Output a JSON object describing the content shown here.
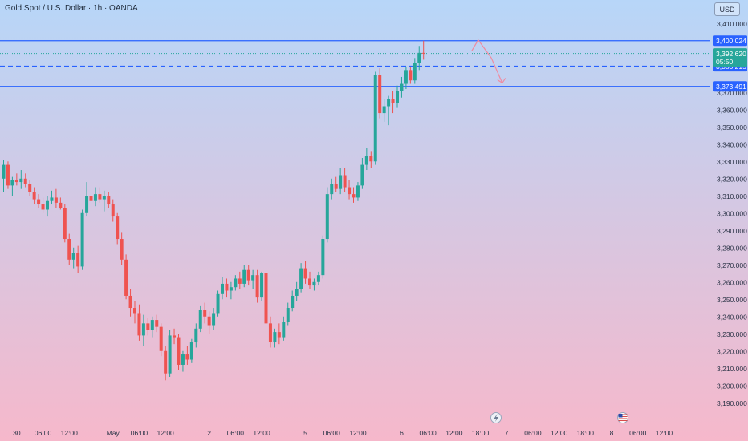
{
  "header": {
    "title": "Gold Spot / U.S. Dollar · 1h · OANDA",
    "currency": "USD"
  },
  "colors": {
    "up": "#26a69a",
    "down": "#ef5350",
    "level_line": "#2962ff",
    "bg_top": "#b7d6f8",
    "bg_bottom": "#f6b8cb",
    "projection": "#f08aa0"
  },
  "chart_data": {
    "type": "candlestick",
    "symbol": "XAUUSD",
    "interval": "1h",
    "ylim": [
      3185,
      3412
    ],
    "y_ticks": [
      "3,190.000",
      "3,200.000",
      "3,210.000",
      "3,220.000",
      "3,230.000",
      "3,240.000",
      "3,250.000",
      "3,260.000",
      "3,270.000",
      "3,280.000",
      "3,290.000",
      "3,300.000",
      "3,310.000",
      "3,320.000",
      "3,330.000",
      "3,340.000",
      "3,350.000",
      "3,360.000",
      "3,370.000",
      "3,410.000"
    ],
    "x_ticks": [
      {
        "label": "30",
        "bar": 3
      },
      {
        "label": "06:00",
        "bar": 9
      },
      {
        "label": "12:00",
        "bar": 15
      },
      {
        "label": "May",
        "bar": 25
      },
      {
        "label": "06:00",
        "bar": 31
      },
      {
        "label": "12:00",
        "bar": 37
      },
      {
        "label": "2",
        "bar": 47
      },
      {
        "label": "06:00",
        "bar": 53
      },
      {
        "label": "12:00",
        "bar": 59
      },
      {
        "label": "5",
        "bar": 69
      },
      {
        "label": "06:00",
        "bar": 75
      },
      {
        "label": "12:00",
        "bar": 81
      },
      {
        "label": "6",
        "bar": 91
      },
      {
        "label": "06:00",
        "bar": 97
      },
      {
        "label": "12:00",
        "bar": 103
      },
      {
        "label": "18:00",
        "bar": 109
      },
      {
        "label": "7",
        "bar": 115
      },
      {
        "label": "06:00",
        "bar": 121
      },
      {
        "label": "12:00",
        "bar": 127
      },
      {
        "label": "18:00",
        "bar": 133
      },
      {
        "label": "8",
        "bar": 139
      },
      {
        "label": "06:00",
        "bar": 145
      },
      {
        "label": "12:00",
        "bar": 151
      }
    ],
    "levels": [
      {
        "value": 3400.024,
        "label": "3,400.024",
        "style": "solid"
      },
      {
        "value": 3385.215,
        "label": "3,385.215",
        "style": "dashed"
      },
      {
        "value": 3373.491,
        "label": "3,373.491",
        "style": "solid"
      }
    ],
    "current_price": {
      "value": 3392.62,
      "label": "3,392.620",
      "countdown": "05:50"
    },
    "projection": [
      {
        "bar": 108.5,
        "y": 3400.5
      },
      {
        "bar": 111.5,
        "y": 3390
      },
      {
        "bar": 114,
        "y": 3375.5
      }
    ],
    "candles": [
      {
        "o": 3320,
        "h": 3331,
        "l": 3312,
        "c": 3328
      },
      {
        "o": 3328,
        "h": 3330,
        "l": 3314,
        "c": 3316
      },
      {
        "o": 3316,
        "h": 3321,
        "l": 3310,
        "c": 3319
      },
      {
        "o": 3319,
        "h": 3323,
        "l": 3316,
        "c": 3318
      },
      {
        "o": 3318,
        "h": 3325,
        "l": 3314,
        "c": 3320
      },
      {
        "o": 3320,
        "h": 3323,
        "l": 3315,
        "c": 3317
      },
      {
        "o": 3317,
        "h": 3319,
        "l": 3310,
        "c": 3312
      },
      {
        "o": 3312,
        "h": 3315,
        "l": 3305,
        "c": 3308
      },
      {
        "o": 3308,
        "h": 3311,
        "l": 3303,
        "c": 3305
      },
      {
        "o": 3305,
        "h": 3309,
        "l": 3300,
        "c": 3302
      },
      {
        "o": 3302,
        "h": 3310,
        "l": 3298,
        "c": 3307
      },
      {
        "o": 3307,
        "h": 3313,
        "l": 3305,
        "c": 3309
      },
      {
        "o": 3309,
        "h": 3314,
        "l": 3303,
        "c": 3306
      },
      {
        "o": 3306,
        "h": 3309,
        "l": 3302,
        "c": 3303
      },
      {
        "o": 3303,
        "h": 3305,
        "l": 3283,
        "c": 3285
      },
      {
        "o": 3285,
        "h": 3288,
        "l": 3270,
        "c": 3273
      },
      {
        "o": 3273,
        "h": 3280,
        "l": 3268,
        "c": 3277
      },
      {
        "o": 3277,
        "h": 3281,
        "l": 3265,
        "c": 3269
      },
      {
        "o": 3269,
        "h": 3302,
        "l": 3267,
        "c": 3300
      },
      {
        "o": 3300,
        "h": 3318,
        "l": 3298,
        "c": 3310
      },
      {
        "o": 3310,
        "h": 3313,
        "l": 3303,
        "c": 3307
      },
      {
        "o": 3307,
        "h": 3315,
        "l": 3304,
        "c": 3311
      },
      {
        "o": 3311,
        "h": 3315,
        "l": 3306,
        "c": 3308
      },
      {
        "o": 3308,
        "h": 3313,
        "l": 3301,
        "c": 3310
      },
      {
        "o": 3310,
        "h": 3312,
        "l": 3303,
        "c": 3305
      },
      {
        "o": 3305,
        "h": 3308,
        "l": 3295,
        "c": 3298
      },
      {
        "o": 3298,
        "h": 3300,
        "l": 3282,
        "c": 3285
      },
      {
        "o": 3285,
        "h": 3289,
        "l": 3270,
        "c": 3273
      },
      {
        "o": 3273,
        "h": 3276,
        "l": 3250,
        "c": 3252
      },
      {
        "o": 3252,
        "h": 3256,
        "l": 3240,
        "c": 3245
      },
      {
        "o": 3245,
        "h": 3249,
        "l": 3236,
        "c": 3242
      },
      {
        "o": 3242,
        "h": 3247,
        "l": 3226,
        "c": 3229
      },
      {
        "o": 3229,
        "h": 3241,
        "l": 3223,
        "c": 3236
      },
      {
        "o": 3236,
        "h": 3239,
        "l": 3229,
        "c": 3232
      },
      {
        "o": 3232,
        "h": 3240,
        "l": 3228,
        "c": 3238
      },
      {
        "o": 3238,
        "h": 3241,
        "l": 3231,
        "c": 3234
      },
      {
        "o": 3234,
        "h": 3236,
        "l": 3217,
        "c": 3220
      },
      {
        "o": 3220,
        "h": 3223,
        "l": 3203,
        "c": 3207
      },
      {
        "o": 3207,
        "h": 3232,
        "l": 3205,
        "c": 3229
      },
      {
        "o": 3229,
        "h": 3233,
        "l": 3224,
        "c": 3228
      },
      {
        "o": 3228,
        "h": 3230,
        "l": 3209,
        "c": 3212
      },
      {
        "o": 3212,
        "h": 3220,
        "l": 3208,
        "c": 3218
      },
      {
        "o": 3218,
        "h": 3223,
        "l": 3212,
        "c": 3215
      },
      {
        "o": 3215,
        "h": 3227,
        "l": 3213,
        "c": 3225
      },
      {
        "o": 3225,
        "h": 3236,
        "l": 3222,
        "c": 3233
      },
      {
        "o": 3233,
        "h": 3246,
        "l": 3231,
        "c": 3244
      },
      {
        "o": 3244,
        "h": 3248,
        "l": 3236,
        "c": 3240
      },
      {
        "o": 3240,
        "h": 3243,
        "l": 3230,
        "c": 3235
      },
      {
        "o": 3235,
        "h": 3245,
        "l": 3232,
        "c": 3242
      },
      {
        "o": 3242,
        "h": 3255,
        "l": 3240,
        "c": 3253
      },
      {
        "o": 3253,
        "h": 3263,
        "l": 3250,
        "c": 3259
      },
      {
        "o": 3259,
        "h": 3262,
        "l": 3251,
        "c": 3255
      },
      {
        "o": 3255,
        "h": 3260,
        "l": 3250,
        "c": 3257
      },
      {
        "o": 3257,
        "h": 3264,
        "l": 3255,
        "c": 3262
      },
      {
        "o": 3262,
        "h": 3266,
        "l": 3256,
        "c": 3259
      },
      {
        "o": 3259,
        "h": 3270,
        "l": 3257,
        "c": 3267
      },
      {
        "o": 3267,
        "h": 3270,
        "l": 3258,
        "c": 3261
      },
      {
        "o": 3261,
        "h": 3267,
        "l": 3256,
        "c": 3264
      },
      {
        "o": 3264,
        "h": 3267,
        "l": 3248,
        "c": 3251
      },
      {
        "o": 3251,
        "h": 3266,
        "l": 3249,
        "c": 3265
      },
      {
        "o": 3265,
        "h": 3268,
        "l": 3233,
        "c": 3236
      },
      {
        "o": 3236,
        "h": 3240,
        "l": 3222,
        "c": 3225
      },
      {
        "o": 3225,
        "h": 3233,
        "l": 3222,
        "c": 3231
      },
      {
        "o": 3231,
        "h": 3236,
        "l": 3224,
        "c": 3228
      },
      {
        "o": 3228,
        "h": 3240,
        "l": 3226,
        "c": 3237
      },
      {
        "o": 3237,
        "h": 3248,
        "l": 3235,
        "c": 3245
      },
      {
        "o": 3245,
        "h": 3255,
        "l": 3243,
        "c": 3252
      },
      {
        "o": 3252,
        "h": 3260,
        "l": 3249,
        "c": 3256
      },
      {
        "o": 3256,
        "h": 3271,
        "l": 3254,
        "c": 3268
      },
      {
        "o": 3268,
        "h": 3272,
        "l": 3259,
        "c": 3262
      },
      {
        "o": 3262,
        "h": 3266,
        "l": 3256,
        "c": 3258
      },
      {
        "o": 3258,
        "h": 3262,
        "l": 3255,
        "c": 3260
      },
      {
        "o": 3260,
        "h": 3266,
        "l": 3258,
        "c": 3264
      },
      {
        "o": 3264,
        "h": 3287,
        "l": 3262,
        "c": 3285
      },
      {
        "o": 3285,
        "h": 3315,
        "l": 3283,
        "c": 3311
      },
      {
        "o": 3311,
        "h": 3320,
        "l": 3308,
        "c": 3317
      },
      {
        "o": 3317,
        "h": 3321,
        "l": 3312,
        "c": 3314
      },
      {
        "o": 3314,
        "h": 3326,
        "l": 3311,
        "c": 3322
      },
      {
        "o": 3322,
        "h": 3326,
        "l": 3312,
        "c": 3315
      },
      {
        "o": 3315,
        "h": 3319,
        "l": 3308,
        "c": 3311
      },
      {
        "o": 3311,
        "h": 3315,
        "l": 3306,
        "c": 3309
      },
      {
        "o": 3309,
        "h": 3318,
        "l": 3307,
        "c": 3316
      },
      {
        "o": 3316,
        "h": 3332,
        "l": 3314,
        "c": 3328
      },
      {
        "o": 3328,
        "h": 3338,
        "l": 3325,
        "c": 3333
      },
      {
        "o": 3333,
        "h": 3336,
        "l": 3326,
        "c": 3330
      },
      {
        "o": 3330,
        "h": 3382,
        "l": 3328,
        "c": 3380
      },
      {
        "o": 3380,
        "h": 3384,
        "l": 3355,
        "c": 3358
      },
      {
        "o": 3358,
        "h": 3366,
        "l": 3353,
        "c": 3362
      },
      {
        "o": 3362,
        "h": 3368,
        "l": 3351,
        "c": 3366
      },
      {
        "o": 3366,
        "h": 3371,
        "l": 3358,
        "c": 3364
      },
      {
        "o": 3364,
        "h": 3374,
        "l": 3361,
        "c": 3371
      },
      {
        "o": 3371,
        "h": 3379,
        "l": 3367,
        "c": 3375
      },
      {
        "o": 3375,
        "h": 3385,
        "l": 3372,
        "c": 3383
      },
      {
        "o": 3383,
        "h": 3385,
        "l": 3375,
        "c": 3377
      },
      {
        "o": 3377,
        "h": 3390,
        "l": 3375,
        "c": 3387
      },
      {
        "o": 3387,
        "h": 3397,
        "l": 3383,
        "c": 3393
      },
      {
        "o": 3393,
        "h": 3400,
        "l": 3389,
        "c": 3392.62
      }
    ]
  }
}
